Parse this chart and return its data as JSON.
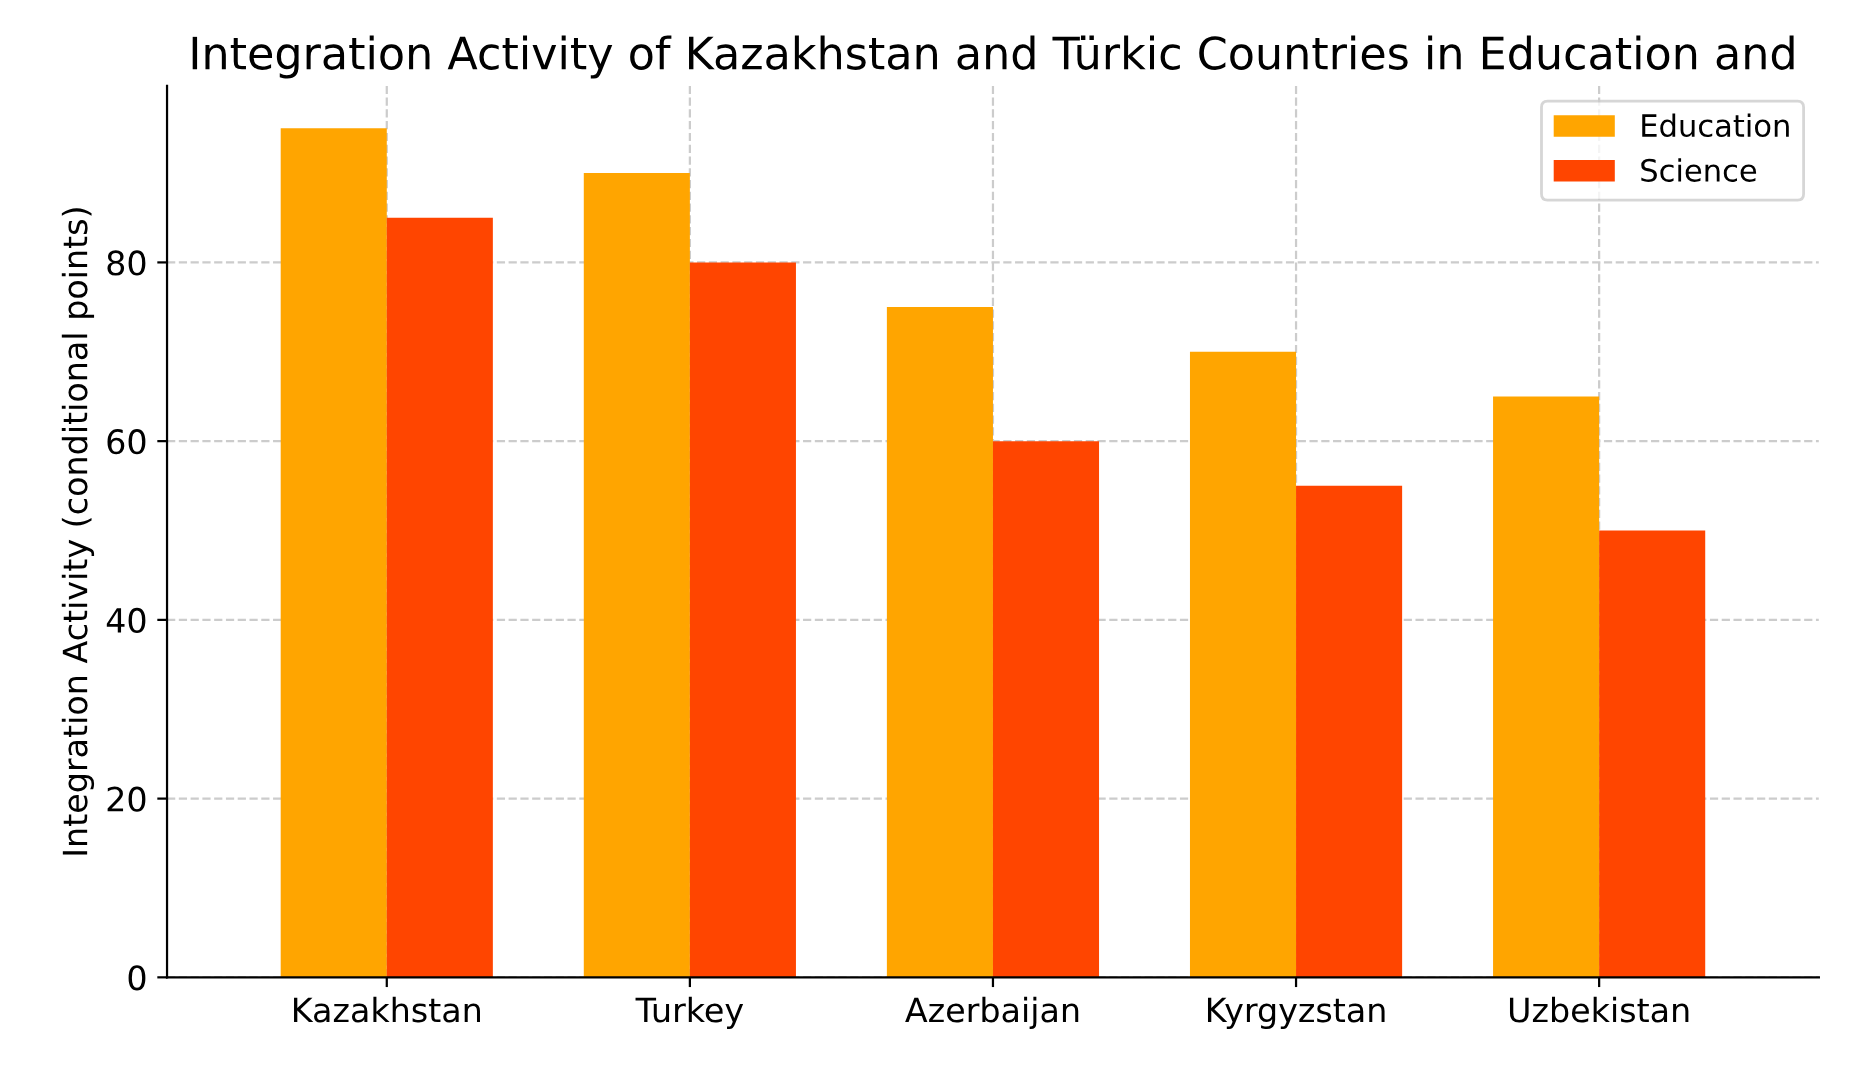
{
  "chart_data": {
    "type": "bar",
    "title": "Integration Activity of Kazakhstan and Türkic Countries in Education and",
    "ylabel": "Integration Activity (conditional points)",
    "categories": [
      "Kazakhstan",
      "Turkey",
      "Azerbaijan",
      "Kyrgyzstan",
      "Uzbekistan"
    ],
    "series": [
      {
        "name": "Education",
        "color": "#ffa500",
        "values": [
          95,
          90,
          75,
          70,
          65
        ]
      },
      {
        "name": "Science",
        "color": "#ff4500",
        "values": [
          85,
          80,
          60,
          55,
          50
        ]
      }
    ],
    "ylim": [
      0,
      99.75
    ],
    "yticks": [
      0,
      20,
      40,
      60,
      80
    ],
    "grid": true,
    "legend": "top right"
  }
}
